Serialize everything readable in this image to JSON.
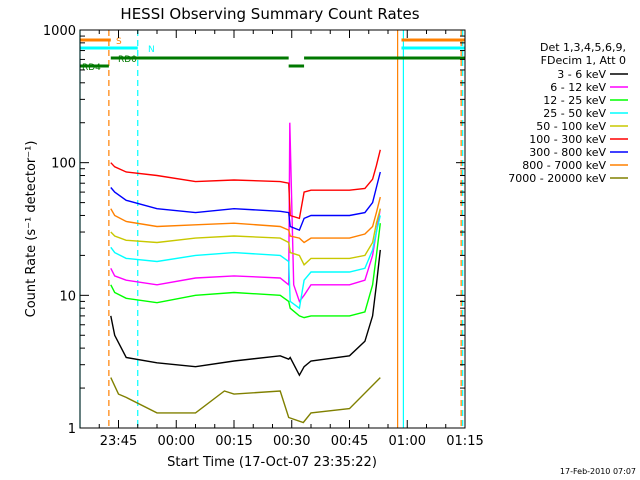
{
  "chart_data": {
    "type": "line",
    "title": "HESSI Observing Summary Count Rates",
    "xlabel": "Start Time (17-Oct-07 23:35:22)",
    "ylabel": "Count Rate (s⁻¹ detector⁻¹)",
    "y_scale": "log",
    "ylim": [
      1,
      1000
    ],
    "xlim_minutes": [
      0,
      100
    ],
    "x_ticks": [
      {
        "label": "23:45",
        "t": 10
      },
      {
        "label": "00:00",
        "t": 25
      },
      {
        "label": "00:15",
        "t": 40
      },
      {
        "label": "00:30",
        "t": 55
      },
      {
        "label": "00:45",
        "t": 70
      },
      {
        "label": "01:00",
        "t": 85
      },
      {
        "label": "01:15",
        "t": 100
      }
    ],
    "y_ticks": [
      {
        "label": "1",
        "v": 1
      },
      {
        "label": "10",
        "v": 10
      },
      {
        "label": "100",
        "v": 100
      },
      {
        "label": "1000",
        "v": 1000
      }
    ],
    "legend_header": [
      "Det 1,3,4,5,6,9,",
      "FDecim 1, Att 0"
    ],
    "legend_position": "right",
    "series": [
      {
        "name": "3 - 6 keV",
        "color": "#000000",
        "x": [
          8,
          9,
          12,
          20,
          30,
          40,
          52,
          54.2,
          54.6,
          57,
          58.2,
          60,
          70,
          74,
          76,
          77,
          78
        ],
        "y": [
          7,
          5,
          3.4,
          3.1,
          2.9,
          3.2,
          3.5,
          3.3,
          3.4,
          2.5,
          2.9,
          3.2,
          3.5,
          4.5,
          7,
          12,
          22
        ]
      },
      {
        "name": "6 - 12 keV",
        "color": "#ff00ff",
        "x": [
          8,
          9,
          12,
          20,
          30,
          40,
          52,
          54.2,
          54.5,
          55.5,
          57,
          58.2,
          60,
          70,
          74,
          76,
          77,
          78
        ],
        "y": [
          16,
          14,
          13,
          12,
          13.5,
          14,
          13.5,
          12,
          200,
          12,
          9,
          10,
          12,
          12,
          13,
          20,
          30,
          45
        ]
      },
      {
        "name": "12 - 25 keV",
        "color": "#00ff00",
        "x": [
          8,
          9,
          12,
          20,
          30,
          40,
          52,
          54.2,
          54.6,
          57,
          58.2,
          60,
          70,
          74,
          76,
          77,
          78
        ],
        "y": [
          12,
          10.5,
          9.5,
          8.8,
          10,
          10.5,
          10,
          9,
          8,
          7,
          6.8,
          7,
          7,
          7.5,
          12,
          20,
          35
        ]
      },
      {
        "name": "25 - 50 keV",
        "color": "#00ffff",
        "x": [
          8,
          9,
          12,
          20,
          30,
          40,
          52,
          54.2,
          54.6,
          57,
          58.2,
          60,
          70,
          74,
          76,
          77,
          78
        ],
        "y": [
          23,
          21,
          19,
          18,
          20,
          21,
          20,
          18,
          9,
          8,
          13,
          15,
          15,
          16,
          22,
          30,
          40
        ]
      },
      {
        "name": "50 - 100 keV",
        "color": "#c8c800",
        "x": [
          8,
          9,
          12,
          20,
          30,
          40,
          52,
          54.2,
          54.6,
          57,
          58.2,
          60,
          70,
          74,
          76,
          77,
          78
        ],
        "y": [
          30,
          28,
          26,
          25,
          27,
          28,
          27,
          25,
          21,
          20,
          17,
          19,
          19,
          20,
          25,
          35,
          45
        ]
      },
      {
        "name": "100 - 300 keV",
        "color": "#ff0000",
        "x": [
          8,
          9,
          12,
          20,
          30,
          40,
          52,
          54.2,
          54.6,
          57,
          58.2,
          60,
          70,
          74,
          76,
          77,
          78
        ],
        "y": [
          100,
          93,
          85,
          80,
          72,
          74,
          72,
          70,
          40,
          38,
          60,
          62,
          62,
          64,
          75,
          95,
          125
        ]
      },
      {
        "name": "300 - 800 keV",
        "color": "#0000ff",
        "x": [
          8,
          9,
          12,
          20,
          30,
          40,
          52,
          54.2,
          54.6,
          57,
          58.2,
          60,
          70,
          74,
          76,
          77,
          78
        ],
        "y": [
          65,
          60,
          52,
          45,
          42,
          45,
          43,
          42,
          33,
          31,
          38,
          40,
          40,
          42,
          50,
          65,
          85
        ]
      },
      {
        "name": "800 - 7000 keV",
        "color": "#ff8000",
        "x": [
          8,
          9,
          12,
          20,
          30,
          40,
          52,
          54.2,
          54.6,
          57,
          58.2,
          60,
          70,
          74,
          76,
          77,
          78
        ],
        "y": [
          45,
          40,
          36,
          33,
          34,
          35,
          33,
          31,
          28,
          27,
          25,
          27,
          27,
          29,
          33,
          42,
          55
        ]
      },
      {
        "name": "7000 - 20000 keV",
        "color": "#808000",
        "x": [
          8,
          10,
          12,
          20,
          30,
          37.5,
          40,
          52,
          54.2,
          58,
          60,
          70,
          78
        ],
        "y": [
          2.4,
          1.8,
          1.7,
          1.3,
          1.3,
          1.9,
          1.8,
          1.9,
          1.2,
          1.1,
          1.3,
          1.4,
          2.4
        ]
      }
    ],
    "flags": [
      {
        "label": "S",
        "color": "#ff8000",
        "segments": [
          [
            0,
            8
          ],
          [
            83.5,
            100
          ]
        ]
      },
      {
        "label": "N",
        "color": "#00ffff",
        "segments": [
          [
            0,
            15
          ],
          [
            83.5,
            100
          ]
        ]
      },
      {
        "label": "RD0",
        "color": "#007800",
        "segments": [
          [
            8,
            54.2
          ],
          [
            58.2,
            100
          ]
        ]
      },
      {
        "label": "RD4",
        "color": "#007800",
        "segments": [
          [
            0,
            7.5
          ],
          [
            54.2,
            58.2
          ]
        ]
      }
    ],
    "vlines": [
      {
        "t": 0,
        "color": "#00ffff",
        "style": "solid"
      },
      {
        "t": 7.5,
        "color": "#ff8000",
        "style": "dashed"
      },
      {
        "t": 15,
        "color": "#00ffff",
        "style": "dashed"
      },
      {
        "t": 82.5,
        "color": "#ff8000",
        "style": "solid"
      },
      {
        "t": 84,
        "color": "#00ffff",
        "style": "solid"
      },
      {
        "t": 99,
        "color": "#ff8000",
        "style": "dashed"
      },
      {
        "t": 99.4,
        "color": "#00ffff",
        "style": "dashed"
      }
    ],
    "footer_date": "17-Feb-2010 07:07"
  }
}
